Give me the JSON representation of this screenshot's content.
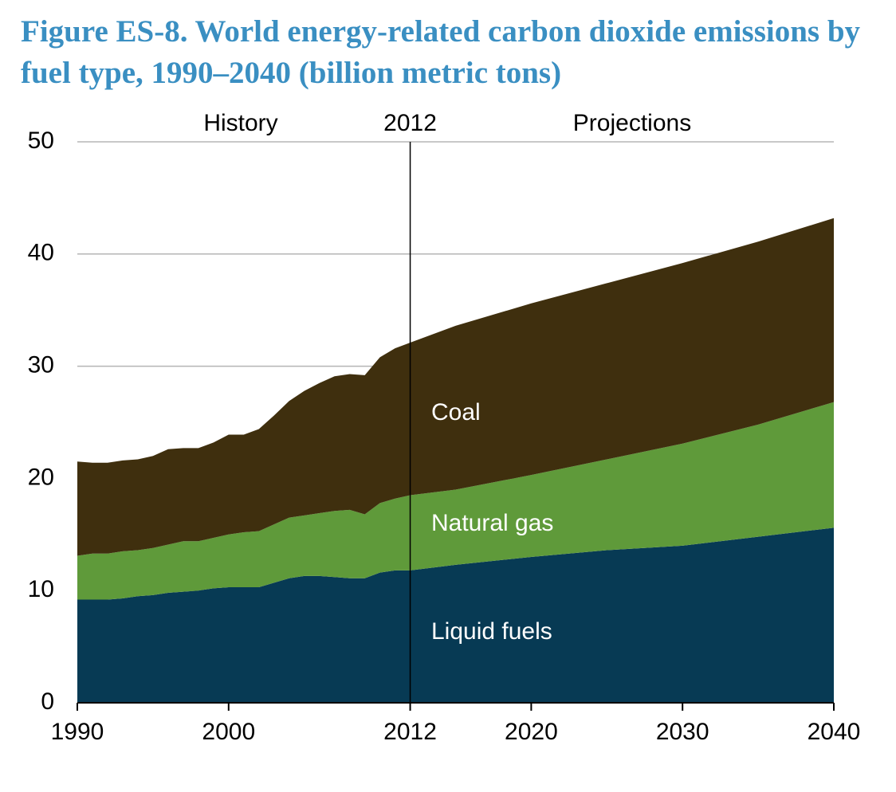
{
  "chart_data": {
    "type": "stacked_area",
    "title": "Figure ES-8. World energy-related carbon dioxide emissions by fuel type, 1990–2040 (billion metric tons)",
    "x": [
      1990,
      1991,
      1992,
      1993,
      1994,
      1995,
      1996,
      1997,
      1998,
      1999,
      2000,
      2001,
      2002,
      2003,
      2004,
      2005,
      2006,
      2007,
      2008,
      2009,
      2010,
      2011,
      2012,
      2015,
      2020,
      2025,
      2030,
      2035,
      2040
    ],
    "series": [
      {
        "name": "Liquid fuels",
        "color": "#073a54",
        "values": [
          9.2,
          9.2,
          9.2,
          9.3,
          9.5,
          9.6,
          9.8,
          9.9,
          10.0,
          10.2,
          10.3,
          10.3,
          10.3,
          10.7,
          11.1,
          11.3,
          11.3,
          11.2,
          11.1,
          11.1,
          11.6,
          11.8,
          11.8,
          12.3,
          13.0,
          13.6,
          14.0,
          14.8,
          15.6
        ]
      },
      {
        "name": "Natural gas",
        "color": "#5f9a3a",
        "values": [
          3.9,
          4.1,
          4.1,
          4.2,
          4.1,
          4.2,
          4.3,
          4.5,
          4.4,
          4.5,
          4.7,
          4.9,
          5.0,
          5.2,
          5.4,
          5.4,
          5.6,
          5.9,
          6.1,
          5.7,
          6.2,
          6.4,
          6.7,
          6.7,
          7.3,
          8.1,
          9.1,
          10.0,
          11.2
        ]
      },
      {
        "name": "Coal",
        "color": "#3f2f0e",
        "values": [
          8.4,
          8.1,
          8.1,
          8.1,
          8.1,
          8.2,
          8.5,
          8.3,
          8.3,
          8.5,
          8.9,
          8.7,
          9.1,
          9.7,
          10.4,
          11.1,
          11.6,
          12.0,
          12.1,
          12.4,
          13.0,
          13.4,
          13.6,
          14.6,
          15.3,
          15.7,
          16.1,
          16.3,
          16.4
        ]
      }
    ],
    "xlim": [
      1990,
      2040
    ],
    "xticks": [
      1990,
      2000,
      2012,
      2020,
      2030,
      2040
    ],
    "ylim": [
      0,
      50
    ],
    "yticks": [
      0,
      10,
      20,
      30,
      40,
      50
    ],
    "grid": true,
    "divider": 2012,
    "annotations": [
      "History",
      "Projections"
    ]
  }
}
